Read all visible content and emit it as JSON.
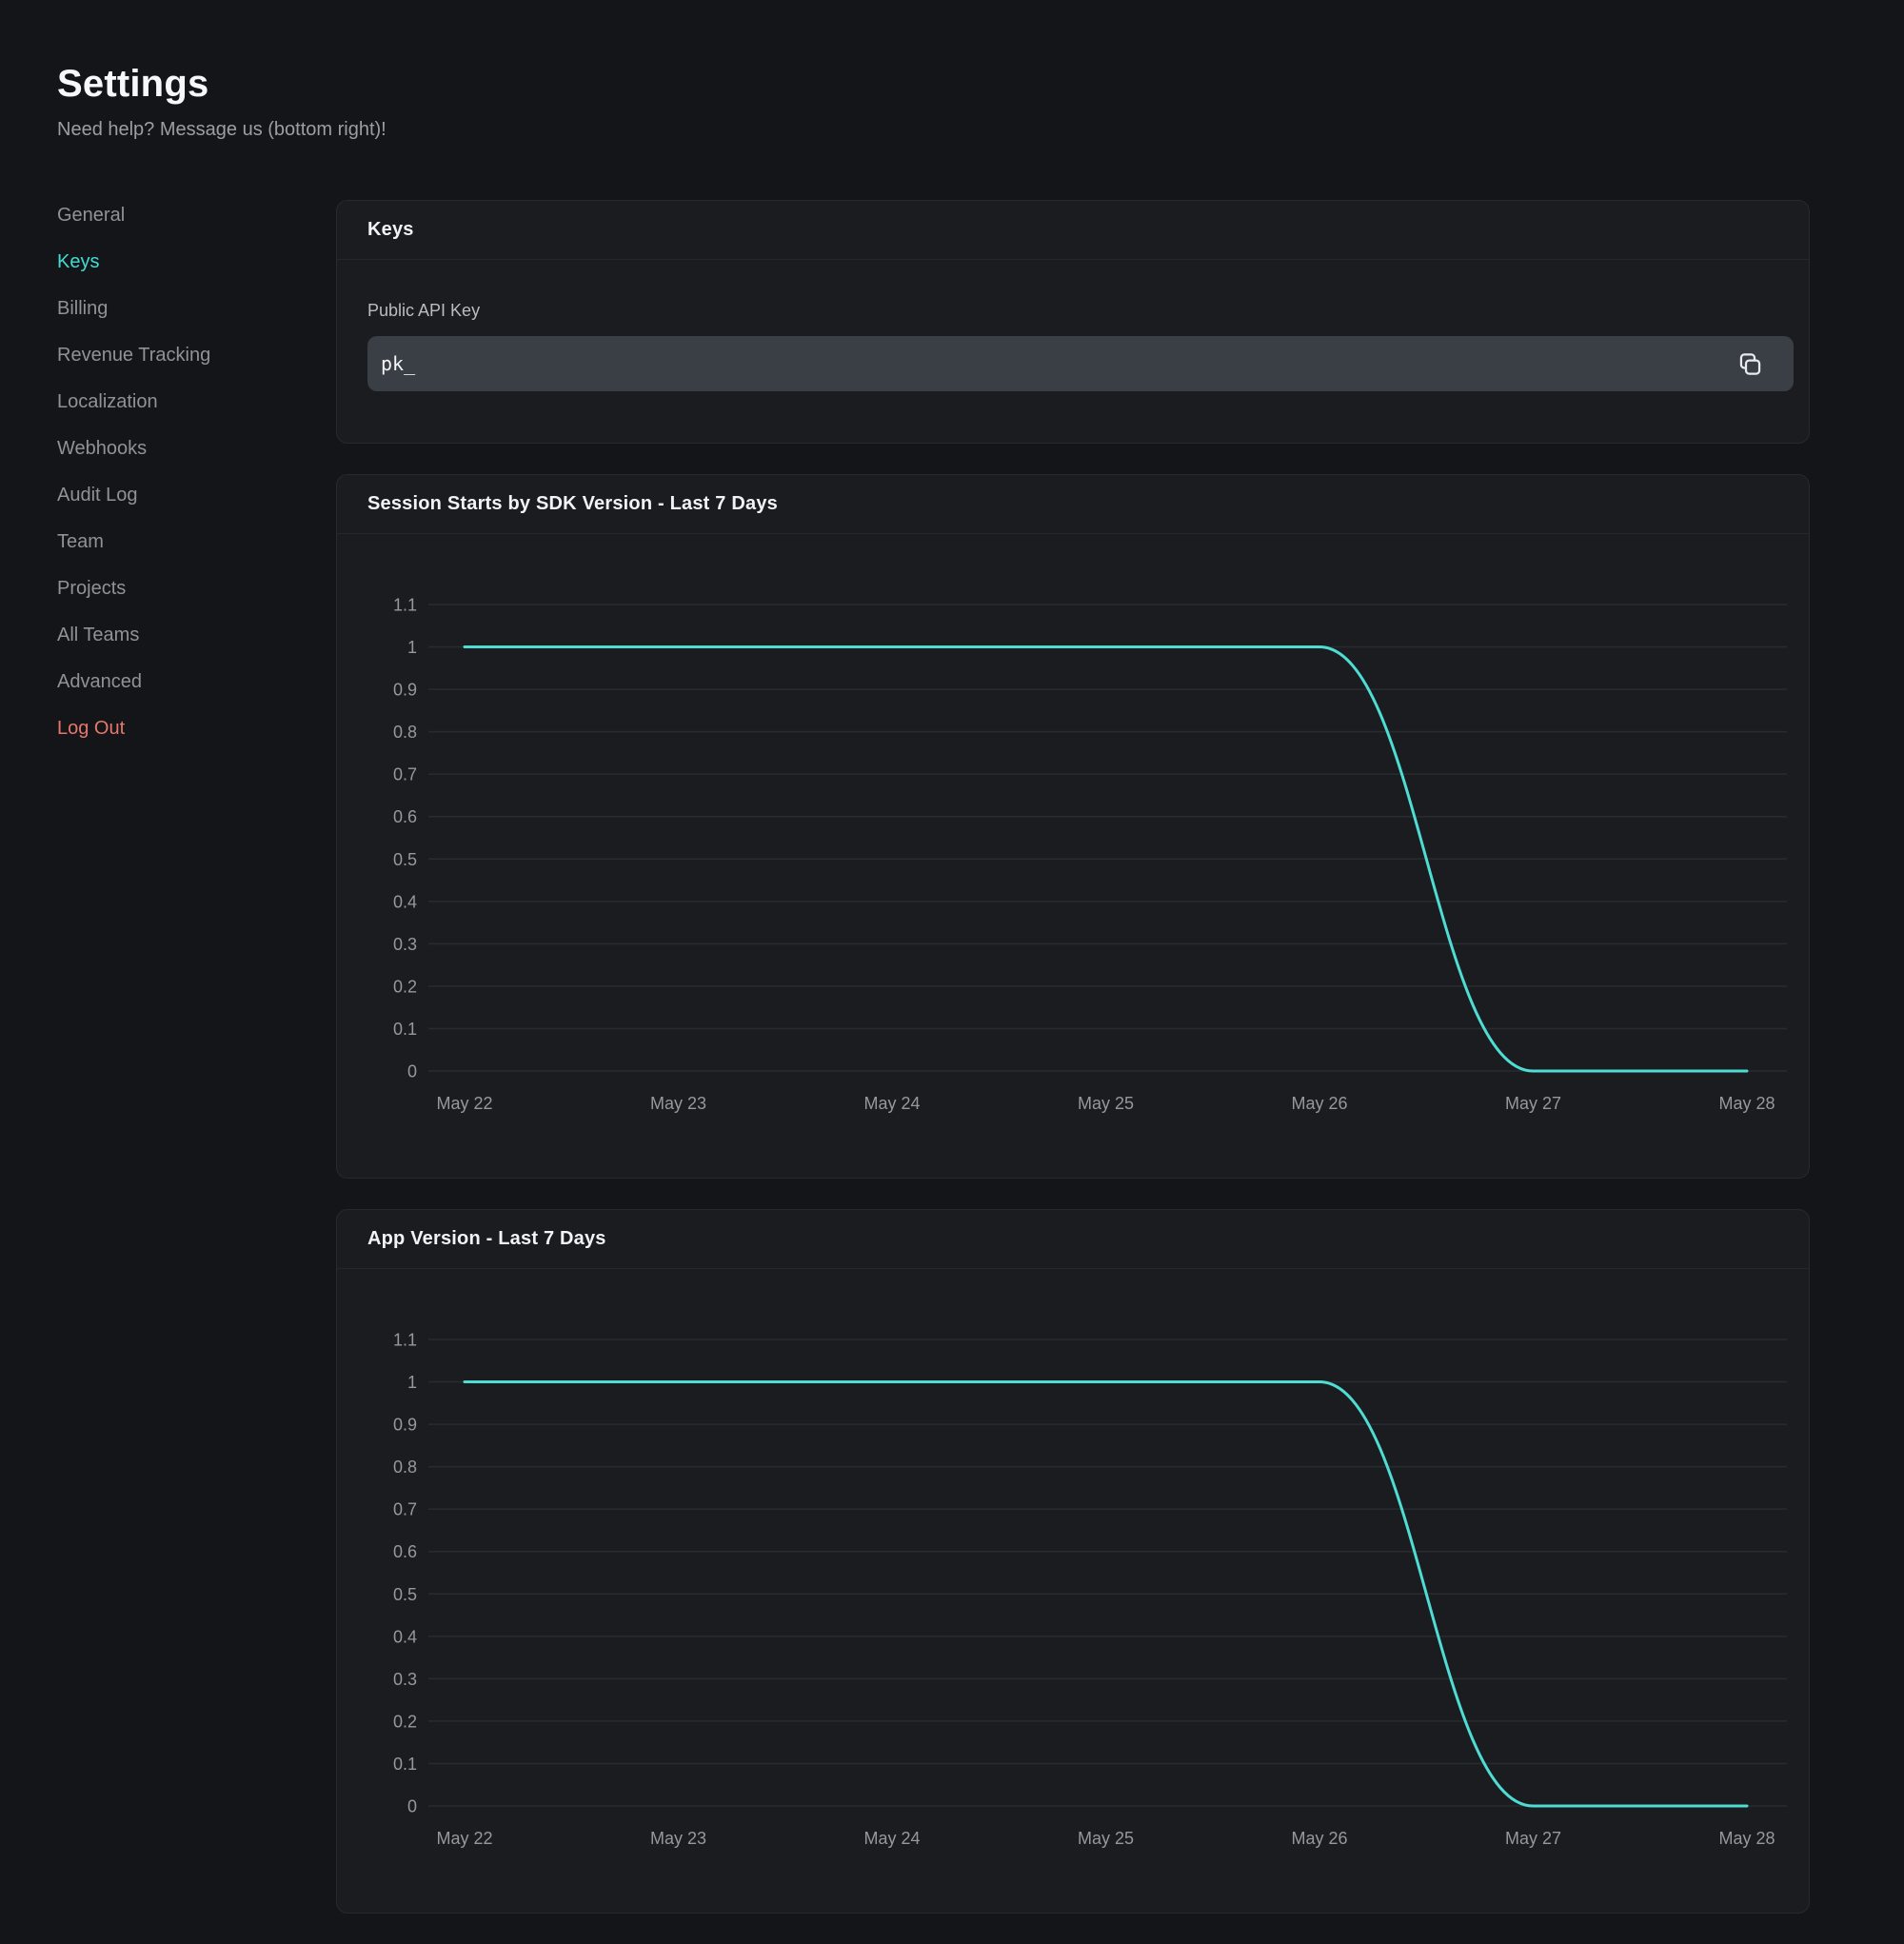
{
  "app": {
    "title": "Settings",
    "subtitle": "Need help? Message us (bottom right)!"
  },
  "sidebar": {
    "items": [
      {
        "label": "General",
        "state": "default"
      },
      {
        "label": "Keys",
        "state": "active"
      },
      {
        "label": "Billing",
        "state": "default"
      },
      {
        "label": "Revenue Tracking",
        "state": "default"
      },
      {
        "label": "Localization",
        "state": "default"
      },
      {
        "label": "Webhooks",
        "state": "default"
      },
      {
        "label": "Audit Log",
        "state": "default"
      },
      {
        "label": "Team",
        "state": "default"
      },
      {
        "label": "Projects",
        "state": "default"
      },
      {
        "label": "All Teams",
        "state": "default"
      },
      {
        "label": "Advanced",
        "state": "default"
      },
      {
        "label": "Log Out",
        "state": "danger"
      }
    ]
  },
  "keys_card": {
    "title": "Keys",
    "public_api_key": {
      "label": "Public API Key",
      "value": "pk_",
      "copy_icon": "copy-icon"
    }
  },
  "chart_data": [
    {
      "type": "line",
      "title": "Session Starts by SDK Version - Last 7 Days",
      "categories": [
        "May 22",
        "May 23",
        "May 24",
        "May 25",
        "May 26",
        "May 27",
        "May 28"
      ],
      "series": [
        {
          "values": [
            1,
            1,
            1,
            1,
            1,
            0,
            0
          ]
        }
      ],
      "ylim": [
        0,
        1.1
      ],
      "yticks": [
        1.1,
        1,
        0.9,
        0.8,
        0.7,
        0.6,
        0.5,
        0.4,
        0.3,
        0.2,
        0.1,
        0
      ],
      "grid": true,
      "legend": "none",
      "smooth": true,
      "line_color": "#4edcd3"
    },
    {
      "type": "line",
      "title": "App Version - Last 7 Days",
      "categories": [
        "May 22",
        "May 23",
        "May 24",
        "May 25",
        "May 26",
        "May 27",
        "May 28"
      ],
      "series": [
        {
          "values": [
            1,
            1,
            1,
            1,
            1,
            0,
            0
          ]
        }
      ],
      "ylim": [
        0,
        1.1
      ],
      "yticks": [
        1.1,
        1,
        0.9,
        0.8,
        0.7,
        0.6,
        0.5,
        0.4,
        0.3,
        0.2,
        0.1,
        0
      ],
      "grid": true,
      "legend": "none",
      "smooth": true,
      "line_color": "#4edcd3"
    }
  ],
  "colors": {
    "accent": "#43dcd3",
    "danger": "#e7766d",
    "chart_line": "#4edcd3",
    "grid_line": "#282b30",
    "card_bg": "#1a1c20",
    "page_bg": "#141519",
    "input_bg": "#3a3e45"
  }
}
